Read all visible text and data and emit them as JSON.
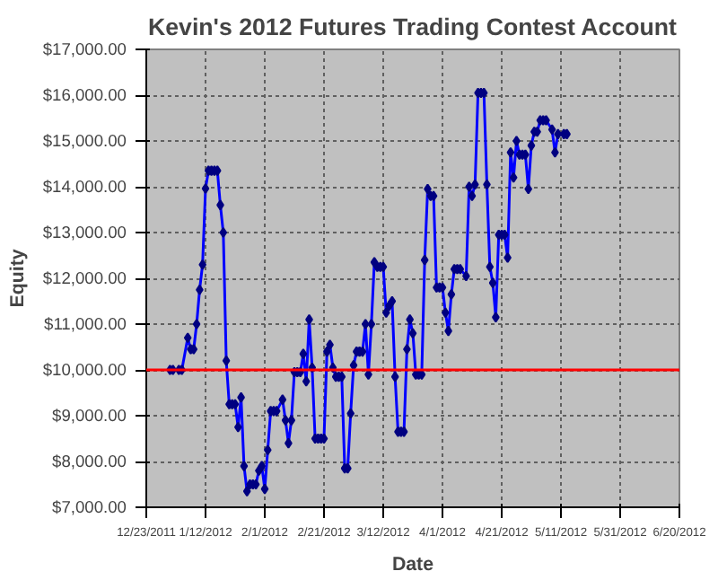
{
  "chart_data": {
    "type": "line",
    "title": "Kevin's 2012 Futures Trading Contest Account",
    "xlabel": "Date",
    "ylabel": "Equity",
    "x": [
      "2011-12-31",
      "2012-01-01",
      "2012-01-03",
      "2012-01-04",
      "2012-01-06",
      "2012-01-07",
      "2012-01-08",
      "2012-01-09",
      "2012-01-10",
      "2012-01-11",
      "2012-01-12",
      "2012-01-13",
      "2012-01-14",
      "2012-01-15",
      "2012-01-16",
      "2012-01-17",
      "2012-01-18",
      "2012-01-19",
      "2012-01-20",
      "2012-01-21",
      "2012-01-22",
      "2012-01-23",
      "2012-01-24",
      "2012-01-25",
      "2012-01-26",
      "2012-01-27",
      "2012-01-28",
      "2012-01-29",
      "2012-01-30",
      "2012-01-31",
      "2012-02-01",
      "2012-02-02",
      "2012-02-03",
      "2012-02-04",
      "2012-02-05",
      "2012-02-07",
      "2012-02-08",
      "2012-02-09",
      "2012-02-10",
      "2012-02-11",
      "2012-02-12",
      "2012-02-13",
      "2012-02-14",
      "2012-02-15",
      "2012-02-16",
      "2012-02-17",
      "2012-02-18",
      "2012-02-19",
      "2012-02-20",
      "2012-02-21",
      "2012-02-22",
      "2012-02-23",
      "2012-02-24",
      "2012-02-25",
      "2012-02-26",
      "2012-02-27",
      "2012-02-28",
      "2012-02-29",
      "2012-03-01",
      "2012-03-02",
      "2012-03-03",
      "2012-03-04",
      "2012-03-05",
      "2012-03-06",
      "2012-03-07",
      "2012-03-08",
      "2012-03-09",
      "2012-03-10",
      "2012-03-11",
      "2012-03-12",
      "2012-03-13",
      "2012-03-14",
      "2012-03-15",
      "2012-03-16",
      "2012-03-17",
      "2012-03-18",
      "2012-03-19",
      "2012-03-20",
      "2012-03-21",
      "2012-03-22",
      "2012-03-23",
      "2012-03-24",
      "2012-03-25",
      "2012-03-26",
      "2012-03-27",
      "2012-03-28",
      "2012-03-29",
      "2012-03-30",
      "2012-03-31",
      "2012-04-01",
      "2012-04-02",
      "2012-04-03",
      "2012-04-04",
      "2012-04-05",
      "2012-04-06",
      "2012-04-07",
      "2012-04-09",
      "2012-04-10",
      "2012-04-11",
      "2012-04-12",
      "2012-04-13",
      "2012-04-14",
      "2012-04-15",
      "2012-04-16",
      "2012-04-17",
      "2012-04-18",
      "2012-04-19",
      "2012-04-20",
      "2012-04-21",
      "2012-04-22",
      "2012-04-23",
      "2012-04-24",
      "2012-04-25",
      "2012-04-26",
      "2012-04-27",
      "2012-04-28",
      "2012-04-29",
      "2012-04-30",
      "2012-05-01",
      "2012-05-02",
      "2012-05-03",
      "2012-05-04",
      "2012-05-05",
      "2012-05-06",
      "2012-05-08",
      "2012-05-09",
      "2012-05-10",
      "2012-05-12",
      "2012-05-13"
    ],
    "series": [
      {
        "color": "#0000ff",
        "values": [
          10000,
          10000,
          10000,
          10000,
          10700,
          10450,
          10450,
          11000,
          11750,
          12300,
          13960,
          14350,
          14350,
          14350,
          14350,
          13600,
          13000,
          10200,
          9250,
          9250,
          9250,
          8750,
          9400,
          7900,
          7350,
          7500,
          7500,
          7500,
          7800,
          7900,
          7400,
          8250,
          9100,
          9100,
          9100,
          9350,
          8900,
          8400,
          8900,
          9950,
          9950,
          9950,
          10350,
          9750,
          11100,
          10050,
          8500,
          8500,
          8500,
          8500,
          10400,
          10550,
          10050,
          9850,
          9850,
          9850,
          7850,
          7850,
          9050,
          10100,
          10400,
          10400,
          10400,
          11000,
          9900,
          11000,
          12350,
          12250,
          12250,
          12250,
          11250,
          11400,
          11500,
          9850,
          8650,
          8650,
          8650,
          10450,
          11100,
          10800,
          9900,
          9900,
          9900,
          12400,
          13950,
          13800,
          13800,
          11800,
          11800,
          11800,
          11250,
          10850,
          11650,
          12200,
          12200,
          12200,
          12050,
          14000,
          13800,
          14050,
          16050,
          16050,
          16050,
          14050,
          12250,
          11900,
          11150,
          12950,
          12950,
          12950,
          12450,
          14750,
          14200,
          15000,
          14700,
          14700,
          14700,
          13950,
          14900,
          15200,
          15200,
          15450,
          15450,
          15450,
          15250,
          14750,
          15150,
          15150,
          15150
        ]
      }
    ],
    "marker": "diamond",
    "line_style": "solid",
    "grid": true,
    "xlim": [
      "2011-12-23",
      "2012-06-20"
    ],
    "xticks": [
      {
        "value": "2011-12-23",
        "label": "12/23/2011"
      },
      {
        "value": "2012-01-12",
        "label": "1/12/2012"
      },
      {
        "value": "2012-02-01",
        "label": "2/1/2012"
      },
      {
        "value": "2012-02-21",
        "label": "2/21/2012"
      },
      {
        "value": "2012-03-12",
        "label": "3/12/2012"
      },
      {
        "value": "2012-04-01",
        "label": "4/1/2012"
      },
      {
        "value": "2012-04-21",
        "label": "4/21/2012"
      },
      {
        "value": "2012-05-11",
        "label": "5/11/2012"
      },
      {
        "value": "2012-05-31",
        "label": "5/31/2012"
      },
      {
        "value": "2012-06-20",
        "label": "6/20/2012"
      }
    ],
    "ylim": [
      7000,
      17000
    ],
    "yticks": [
      {
        "value": 7000,
        "label": "$7,000.00"
      },
      {
        "value": 8000,
        "label": "$8,000.00"
      },
      {
        "value": 9000,
        "label": "$9,000.00"
      },
      {
        "value": 10000,
        "label": "$10,000.00"
      },
      {
        "value": 11000,
        "label": "$11,000.00"
      },
      {
        "value": 12000,
        "label": "$12,000.00"
      },
      {
        "value": 13000,
        "label": "$13,000.00"
      },
      {
        "value": 14000,
        "label": "$14,000.00"
      },
      {
        "value": 15000,
        "label": "$15,000.00"
      },
      {
        "value": 16000,
        "label": "$16,000.00"
      },
      {
        "value": 17000,
        "label": "$17,000.00"
      }
    ],
    "ref_lines": [
      {
        "axis": "y",
        "value": 10000,
        "color": "#ff0000"
      }
    ]
  }
}
